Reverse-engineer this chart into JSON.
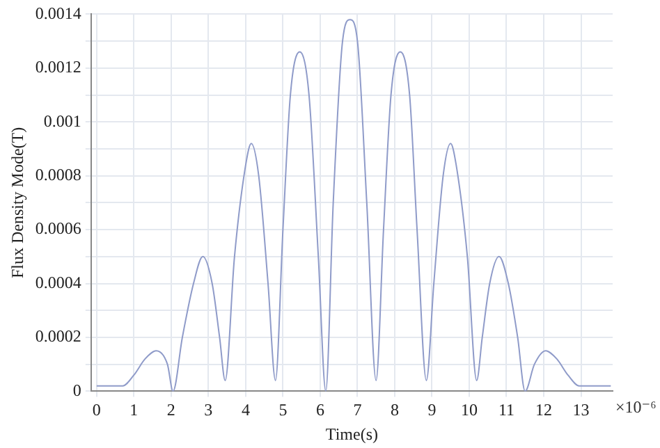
{
  "chart_data": {
    "type": "line",
    "xlabel": "Time(s)",
    "ylabel": "Flux Density Mode(T)",
    "annotations": [
      "×10⁻⁶"
    ],
    "xlim": [
      -0.15,
      13.85
    ],
    "xticks": [
      0,
      1,
      2,
      3,
      4,
      5,
      6,
      7,
      8,
      9,
      10,
      11,
      12,
      13
    ],
    "ylim": [
      0,
      0.0014
    ],
    "yticks": [
      0,
      {
        "value": 0.0001,
        "label": null
      },
      0.0002,
      {
        "value": 0.0003,
        "label": null
      },
      0.0004,
      {
        "value": 0.0005,
        "label": null
      },
      0.0006,
      {
        "value": 0.0007,
        "label": null
      },
      0.0008,
      {
        "value": 0.0009,
        "label": null
      },
      0.001,
      {
        "value": 0.0011,
        "label": null
      },
      0.0012,
      {
        "value": 0.0013,
        "label": null
      },
      0.0014
    ],
    "grid": true,
    "legend": false,
    "marker": "none",
    "line_style": "solid",
    "series": [
      {
        "color": "#8f9bc9",
        "x": [
          0,
          0.5,
          0.7,
          1.0,
          1.3,
          1.6,
          1.9,
          2.05,
          2.3,
          2.6,
          2.85,
          3.1,
          3.3,
          3.45,
          3.7,
          4.0,
          4.15,
          4.35,
          4.6,
          4.8,
          5.0,
          5.2,
          5.45,
          5.7,
          5.95,
          6.15,
          6.35,
          6.6,
          6.8,
          7.0,
          7.25,
          7.5,
          7.7,
          7.9,
          8.15,
          8.4,
          8.6,
          8.85,
          9.05,
          9.3,
          9.5,
          9.65,
          9.95,
          10.2,
          10.35,
          10.55,
          10.8,
          11.05,
          11.3,
          11.5,
          11.75,
          12.05,
          12.35,
          12.65,
          12.95,
          13.3,
          13.8
        ],
        "values": [
          2e-05,
          2e-05,
          2e-05,
          6e-05,
          0.00012,
          0.00015,
          0.0001,
          0,
          0.0002,
          0.0004,
          0.0005,
          0.0004,
          0.0002,
          4e-05,
          0.0005,
          0.00084,
          0.00092,
          0.0008,
          0.0004,
          4e-05,
          0.0006,
          0.0011,
          0.00126,
          0.0011,
          0.0005,
          0,
          0.0007,
          0.0013,
          0.00138,
          0.0013,
          0.0007,
          4e-05,
          0.0006,
          0.0011,
          0.00126,
          0.0011,
          0.0006,
          4e-05,
          0.0004,
          0.0008,
          0.00092,
          0.00084,
          0.0005,
          4e-05,
          0.0002,
          0.0004,
          0.0005,
          0.0004,
          0.0002,
          0,
          0.0001,
          0.00015,
          0.00012,
          6e-05,
          2e-05,
          2e-05,
          2e-05
        ]
      }
    ]
  }
}
